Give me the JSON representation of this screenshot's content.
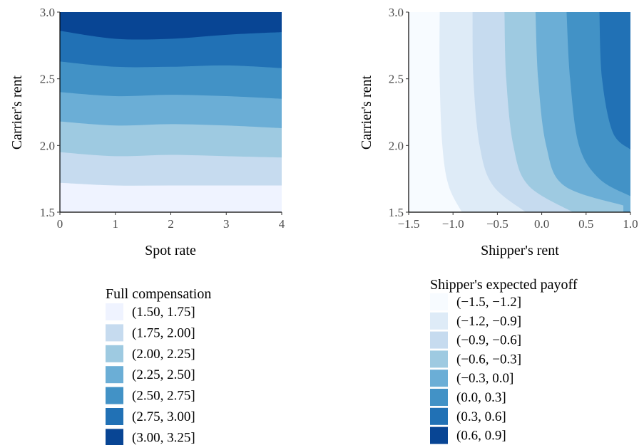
{
  "chart_data": [
    {
      "type": "contour",
      "xlabel": "Spot rate",
      "ylabel": "Carrier's  rent",
      "xlim": [
        0,
        4
      ],
      "ylim": [
        1.5,
        3.0
      ],
      "xticks": [
        "0",
        "1",
        "2",
        "3",
        "4"
      ],
      "yticks": [
        "1.5",
        "2.0",
        "2.5",
        "3.0"
      ],
      "legend": {
        "title": "Full compensation",
        "placement": "bottom",
        "bins": [
          {
            "label": "(1.50, 1.75]",
            "color": "#eff3ff"
          },
          {
            "label": "(1.75, 2.00]",
            "color": "#c6dbef"
          },
          {
            "label": "(2.00, 2.25]",
            "color": "#9ecae1"
          },
          {
            "label": "(2.25, 2.50]",
            "color": "#6baed6"
          },
          {
            "label": "(2.50, 2.75]",
            "color": "#4292c6"
          },
          {
            "label": "(2.75, 3.00]",
            "color": "#2171b5"
          },
          {
            "label": "(3.00, 3.25]",
            "color": "#084594"
          }
        ]
      },
      "boundaries": [
        {
          "x": [
            0,
            1,
            2,
            3,
            4
          ],
          "y": [
            1.72,
            1.7,
            1.7,
            1.7,
            1.7
          ]
        },
        {
          "x": [
            0,
            1,
            2,
            3,
            4
          ],
          "y": [
            1.95,
            1.92,
            1.93,
            1.92,
            1.91
          ]
        },
        {
          "x": [
            0,
            1,
            2,
            3,
            4
          ],
          "y": [
            2.18,
            2.15,
            2.16,
            2.15,
            2.13
          ]
        },
        {
          "x": [
            0,
            1,
            2,
            3,
            4
          ],
          "y": [
            2.4,
            2.37,
            2.38,
            2.37,
            2.35
          ]
        },
        {
          "x": [
            0,
            1,
            2,
            3,
            4
          ],
          "y": [
            2.63,
            2.59,
            2.59,
            2.6,
            2.58
          ]
        },
        {
          "x": [
            0,
            1,
            2,
            3,
            4
          ],
          "y": [
            2.86,
            2.8,
            2.8,
            2.83,
            2.85
          ]
        }
      ]
    },
    {
      "type": "contour",
      "xlabel": "Shipper's rent",
      "ylabel": "Carrier's  rent",
      "xlim": [
        -1.5,
        1.0
      ],
      "ylim": [
        1.5,
        3.0
      ],
      "xticks": [
        "−1.5",
        "−1.0",
        "−0.5",
        "0.0",
        "0.5",
        "1.0"
      ],
      "yticks": [
        "1.5",
        "2.0",
        "2.5",
        "3.0"
      ],
      "legend": {
        "title": "Shipper's expected payoff",
        "placement": "bottom",
        "bins": [
          {
            "label": "(−1.5, −1.2]",
            "color": "#f7fbff"
          },
          {
            "label": "(−1.2, −0.9]",
            "color": "#deebf7"
          },
          {
            "label": "(−0.9, −0.6]",
            "color": "#c6dbef"
          },
          {
            "label": "(−0.6, −0.3]",
            "color": "#9ecae1"
          },
          {
            "label": "(−0.3, 0.0]",
            "color": "#6baed6"
          },
          {
            "label": "(0.0, 0.3]",
            "color": "#4292c6"
          },
          {
            "label": "(0.3, 0.6]",
            "color": "#2171b5"
          },
          {
            "label": "(0.6, 0.9]",
            "color": "#084594"
          }
        ]
      },
      "boundaries": [
        {
          "x": [
            -1.15,
            -1.15,
            -1.12,
            -1.05,
            -0.9
          ],
          "y": [
            3.0,
            2.5,
            2.0,
            1.7,
            1.5
          ]
        },
        {
          "x": [
            -0.78,
            -0.77,
            -0.7,
            -0.55,
            -0.18
          ],
          "y": [
            3.0,
            2.5,
            2.0,
            1.7,
            1.5
          ]
        },
        {
          "x": [
            -0.42,
            -0.4,
            -0.32,
            -0.15,
            0.35
          ],
          "y": [
            3.0,
            2.5,
            2.0,
            1.7,
            1.5
          ]
        },
        {
          "x": [
            -0.07,
            -0.04,
            0.05,
            0.25,
            0.92
          ],
          "y": [
            3.0,
            2.5,
            2.0,
            1.7,
            1.55
          ]
        },
        {
          "x": [
            0.28,
            0.32,
            0.42,
            0.65,
            1.0
          ],
          "y": [
            3.0,
            2.5,
            2.0,
            1.75,
            1.62
          ]
        },
        {
          "x": [
            0.65,
            0.68,
            0.8,
            1.0
          ],
          "y": [
            3.0,
            2.5,
            2.1,
            1.97
          ]
        }
      ]
    }
  ]
}
